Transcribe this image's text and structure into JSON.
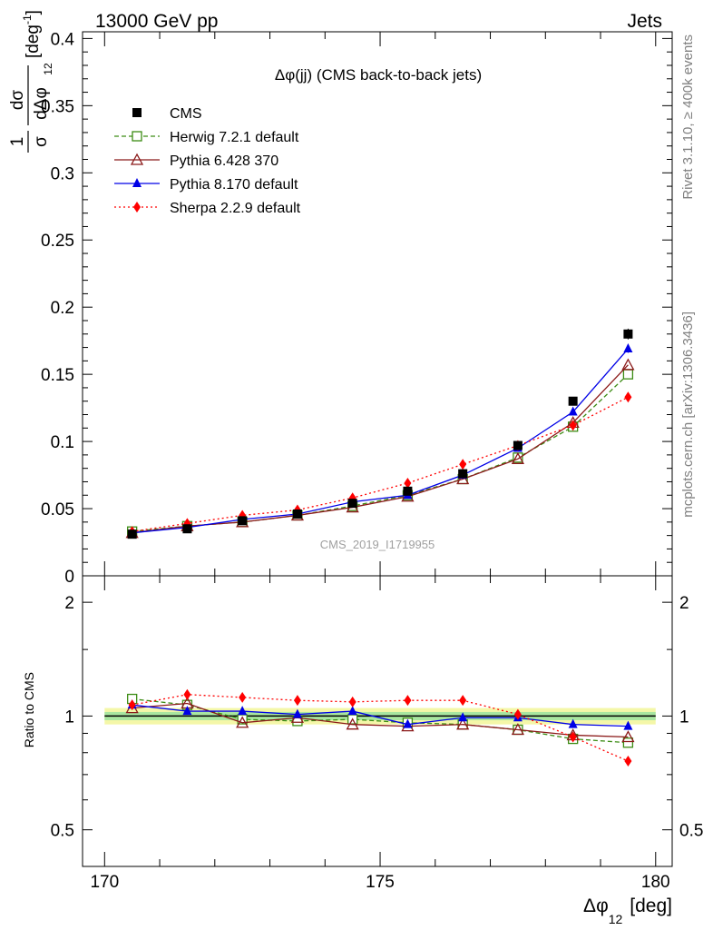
{
  "header": {
    "left": "13000 GeV pp",
    "right": "Jets"
  },
  "side_text": {
    "rivet": "Rivet 3.1.10, ≥ 400k events",
    "mcplots": "mcplots.cern.ch [arXiv:1306.3436]"
  },
  "chart_data": [
    {
      "type": "scatter",
      "panel": "main",
      "title": "Δφ(jj) (CMS back-to-back jets)",
      "watermark": "CMS_2019_I1719955",
      "ylabel_parts": {
        "one": "1",
        "dsigma": "dσ",
        "sigma": "σ",
        "dphi": "dΔφ",
        "sub": "12",
        "unit": "[deg",
        "unit_sup": "-1",
        "unit_close": "]"
      },
      "ylim": [
        0,
        0.405
      ],
      "yticks": [
        0,
        0.05,
        0.1,
        0.15,
        0.2,
        0.25,
        0.3,
        0.35,
        0.4
      ],
      "ytick_labels": [
        "0",
        "0.05",
        "0.1",
        "0.15",
        "0.2",
        "0.25",
        "0.3",
        "0.35",
        "0.4"
      ],
      "x": [
        170.5,
        171.5,
        172.5,
        173.5,
        174.5,
        175.5,
        176.5,
        177.5,
        178.5,
        179.5
      ],
      "legend_position": "top-left",
      "series": [
        {
          "name": "CMS",
          "color": "#000000",
          "marker": "filled-square",
          "dash": "none",
          "line": false,
          "values": [
            0.031,
            0.035,
            0.041,
            0.046,
            0.054,
            0.063,
            0.076,
            0.097,
            0.13,
            0.18
          ],
          "errors": [
            0.001,
            0.001,
            0.001,
            0.001,
            0.0015,
            0.0015,
            0.002,
            0.002,
            0.003,
            0.004
          ]
        },
        {
          "name": "Herwig 7.2.1 default",
          "color": "#3c8c14",
          "marker": "open-square",
          "dash": "5,3",
          "line": true,
          "values": [
            0.033,
            0.037,
            0.04,
            0.045,
            0.052,
            0.06,
            0.072,
            0.088,
            0.111,
            0.15
          ],
          "errors": [
            0,
            0,
            0,
            0,
            0,
            0,
            0,
            0,
            0,
            0
          ]
        },
        {
          "name": "Pythia 6.428 370",
          "color": "#8b1a1a",
          "marker": "open-triangle",
          "dash": "none",
          "line": true,
          "values": [
            0.032,
            0.037,
            0.04,
            0.045,
            0.051,
            0.059,
            0.072,
            0.087,
            0.114,
            0.157
          ],
          "errors": [
            0,
            0,
            0,
            0,
            0,
            0,
            0,
            0,
            0,
            0
          ]
        },
        {
          "name": "Pythia 8.170 default",
          "color": "#0000e6",
          "marker": "filled-triangle",
          "dash": "none",
          "line": true,
          "values": [
            0.032,
            0.036,
            0.042,
            0.046,
            0.055,
            0.06,
            0.075,
            0.095,
            0.122,
            0.169
          ],
          "errors": [
            0.0008,
            0.0008,
            0.0008,
            0.0008,
            0.001,
            0.001,
            0.0012,
            0.0015,
            0.002,
            0.003
          ]
        },
        {
          "name": "Sherpa 2.2.9 default",
          "color": "#ff0000",
          "marker": "filled-diamond",
          "dash": "2,3",
          "line": true,
          "values": [
            0.033,
            0.039,
            0.045,
            0.049,
            0.058,
            0.069,
            0.083,
            0.097,
            0.112,
            0.133
          ],
          "errors": [
            0,
            0,
            0,
            0,
            0,
            0,
            0,
            0,
            0,
            0
          ]
        }
      ]
    },
    {
      "type": "scatter",
      "panel": "ratio",
      "ylabel": "Ratio to CMS",
      "ylim": [
        0.4,
        2.35
      ],
      "yscale": "log",
      "ytick_labels": [
        "0.5",
        "1",
        "2"
      ],
      "yticks": [
        0.5,
        1,
        2
      ],
      "xlabel": "Δφ",
      "xlabel_sub": "12",
      "xlabel_unit": "[deg]",
      "xlim": [
        169.6,
        180.3
      ],
      "xticks": [
        170,
        175,
        180
      ],
      "xtick_labels": [
        "170",
        "175",
        "180"
      ],
      "x": [
        170.5,
        171.5,
        172.5,
        173.5,
        174.5,
        175.5,
        176.5,
        177.5,
        178.5,
        179.5
      ],
      "band_inner": 0.025,
      "band_outer": 0.05,
      "series": [
        {
          "name": "Herwig 7.2.1 default",
          "values": [
            1.11,
            1.07,
            0.98,
            0.97,
            0.98,
            0.96,
            0.95,
            0.92,
            0.87,
            0.85
          ]
        },
        {
          "name": "Pythia 6.428 370",
          "values": [
            1.05,
            1.08,
            0.96,
            0.99,
            0.95,
            0.94,
            0.95,
            0.92,
            0.89,
            0.88
          ]
        },
        {
          "name": "Pythia 8.170 default",
          "values": [
            1.07,
            1.03,
            1.03,
            1.01,
            1.03,
            0.95,
            0.99,
            0.99,
            0.95,
            0.94
          ]
        },
        {
          "name": "Sherpa 2.2.9 default",
          "values": [
            1.07,
            1.14,
            1.12,
            1.1,
            1.09,
            1.1,
            1.1,
            1.01,
            0.88,
            0.76
          ]
        }
      ]
    }
  ]
}
